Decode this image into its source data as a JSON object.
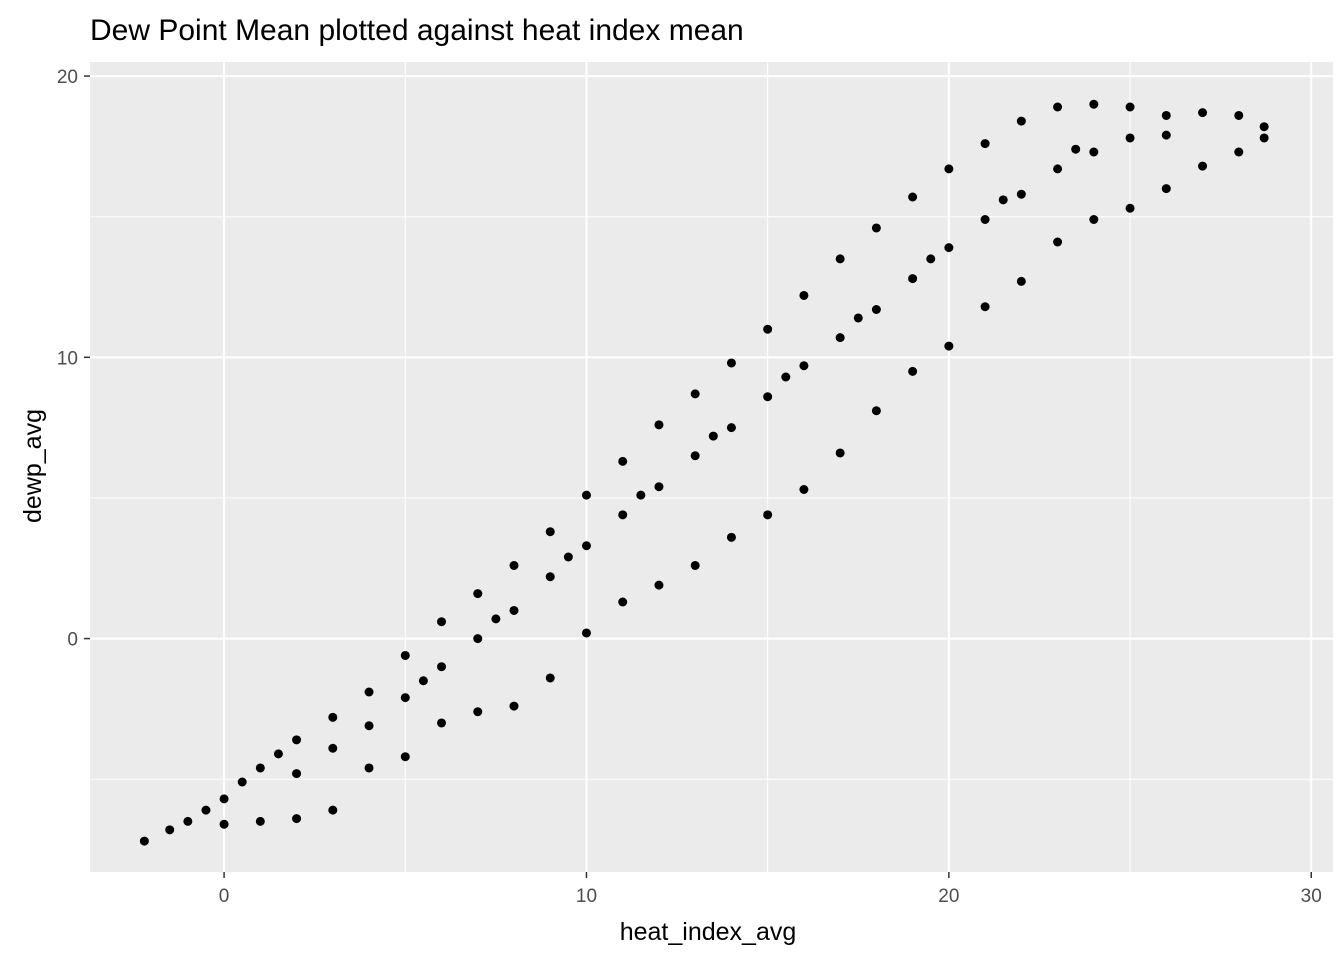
{
  "chart_data": {
    "type": "scatter",
    "title": "Dew Point Mean plotted against heat index mean",
    "xlabel": "heat_index_avg",
    "ylabel": "dewp_avg",
    "xlim": [
      -3.7,
      30.6
    ],
    "ylim": [
      -8.3,
      20.5
    ],
    "x_ticks": [
      0,
      10,
      20,
      30
    ],
    "y_ticks": [
      0,
      10,
      20
    ],
    "x_tick_labels": [
      "0",
      "10",
      "20",
      "30"
    ],
    "y_tick_labels": [
      "0",
      "10",
      "20"
    ],
    "grid": true,
    "legend": "none",
    "colors": {
      "panel_background": "#ebebeb",
      "grid": "#ffffff",
      "points": "#000000",
      "tick_label": "#4d4d4d",
      "tick_mark": "#333333"
    },
    "series": [
      {
        "values": [
          [
            -2.2,
            -7.2
          ],
          [
            -1.5,
            -6.8
          ],
          [
            -1.0,
            -6.5
          ],
          [
            -0.5,
            -6.1
          ],
          [
            0.0,
            -5.7
          ],
          [
            0.5,
            -5.1
          ],
          [
            1.0,
            -4.6
          ],
          [
            1.5,
            -4.1
          ],
          [
            2.0,
            -3.6
          ],
          [
            3.0,
            -2.8
          ],
          [
            4.0,
            -1.9
          ],
          [
            5.0,
            -0.6
          ],
          [
            6.0,
            0.6
          ],
          [
            7.0,
            1.6
          ],
          [
            8.0,
            2.6
          ],
          [
            9.0,
            3.8
          ],
          [
            10.0,
            5.1
          ],
          [
            11.0,
            6.3
          ],
          [
            12.0,
            7.6
          ],
          [
            13.0,
            8.7
          ],
          [
            14.0,
            9.8
          ],
          [
            15.0,
            11.0
          ],
          [
            16.0,
            12.2
          ],
          [
            17.0,
            13.5
          ],
          [
            18.0,
            14.6
          ],
          [
            19.0,
            15.7
          ],
          [
            20.0,
            16.7
          ],
          [
            21.0,
            17.6
          ],
          [
            22.0,
            18.4
          ],
          [
            23.0,
            18.9
          ],
          [
            24.0,
            19.0
          ],
          [
            25.0,
            18.9
          ],
          [
            26.0,
            18.6
          ],
          [
            27.0,
            18.7
          ],
          [
            28.0,
            18.6
          ],
          [
            28.7,
            18.2
          ],
          [
            0.0,
            -6.6
          ],
          [
            1.0,
            -6.5
          ],
          [
            2.0,
            -6.4
          ],
          [
            3.0,
            -6.1
          ],
          [
            4.0,
            -4.6
          ],
          [
            5.0,
            -4.2
          ],
          [
            6.0,
            -3.0
          ],
          [
            7.0,
            -2.6
          ],
          [
            8.0,
            -2.4
          ],
          [
            9.0,
            -1.4
          ],
          [
            10.0,
            0.2
          ],
          [
            11.0,
            1.3
          ],
          [
            12.0,
            1.9
          ],
          [
            13.0,
            2.6
          ],
          [
            14.0,
            3.6
          ],
          [
            15.0,
            4.4
          ],
          [
            16.0,
            5.3
          ],
          [
            17.0,
            6.6
          ],
          [
            18.0,
            8.1
          ],
          [
            19.0,
            9.5
          ],
          [
            20.0,
            10.4
          ],
          [
            21.0,
            11.8
          ],
          [
            22.0,
            12.7
          ],
          [
            23.0,
            14.1
          ],
          [
            24.0,
            14.9
          ],
          [
            25.0,
            15.3
          ],
          [
            26.0,
            16.0
          ],
          [
            27.0,
            16.8
          ],
          [
            28.0,
            17.3
          ],
          [
            28.7,
            17.8
          ],
          [
            2.0,
            -4.8
          ],
          [
            3.0,
            -3.9
          ],
          [
            4.0,
            -3.1
          ],
          [
            5.0,
            -2.1
          ],
          [
            6.0,
            -1.0
          ],
          [
            7.0,
            0.0
          ],
          [
            8.0,
            1.0
          ],
          [
            9.0,
            2.2
          ],
          [
            10.0,
            3.3
          ],
          [
            11.0,
            4.4
          ],
          [
            12.0,
            5.4
          ],
          [
            13.0,
            6.5
          ],
          [
            14.0,
            7.5
          ],
          [
            15.0,
            8.6
          ],
          [
            16.0,
            9.7
          ],
          [
            17.0,
            10.7
          ],
          [
            18.0,
            11.7
          ],
          [
            19.0,
            12.8
          ],
          [
            20.0,
            13.9
          ],
          [
            21.0,
            14.9
          ],
          [
            22.0,
            15.8
          ],
          [
            23.0,
            16.7
          ],
          [
            24.0,
            17.3
          ],
          [
            25.0,
            17.8
          ],
          [
            26.0,
            17.9
          ],
          [
            5.5,
            -1.5
          ],
          [
            7.5,
            0.7
          ],
          [
            9.5,
            2.9
          ],
          [
            11.5,
            5.1
          ],
          [
            13.5,
            7.2
          ],
          [
            15.5,
            9.3
          ],
          [
            17.5,
            11.4
          ],
          [
            19.5,
            13.5
          ],
          [
            21.5,
            15.6
          ],
          [
            23.5,
            17.4
          ]
        ]
      }
    ]
  }
}
